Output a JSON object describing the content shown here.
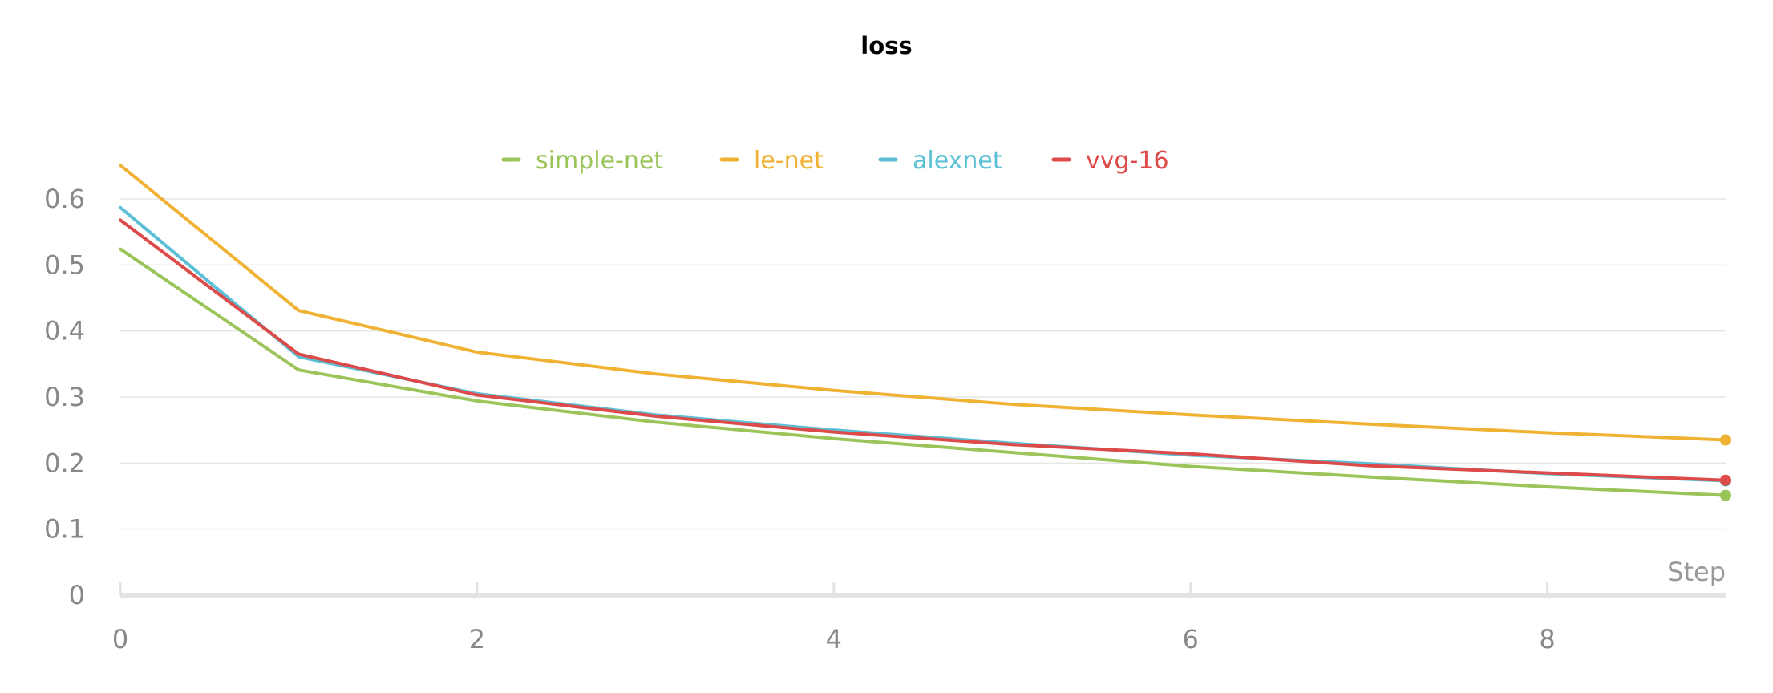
{
  "chart_data": {
    "type": "line",
    "title": "loss",
    "xlabel": "Step",
    "ylabel": "",
    "xlim": [
      0,
      9
    ],
    "ylim": [
      0,
      0.65
    ],
    "xticks": [
      0,
      2,
      4,
      6,
      8
    ],
    "yticks": [
      0,
      0.1,
      0.2,
      0.3,
      0.4,
      0.5,
      0.6
    ],
    "ytick_labels": [
      "0",
      "0.1",
      "0.2",
      "0.3",
      "0.4",
      "0.5",
      "0.6"
    ],
    "grid": true,
    "legend_position": "top-center",
    "x": [
      0,
      1,
      2,
      3,
      4,
      5,
      6,
      7,
      8,
      9
    ],
    "series": [
      {
        "name": "simple-net",
        "color": "#9bc55a",
        "values": [
          0.524,
          0.341,
          0.294,
          0.262,
          0.237,
          0.216,
          0.195,
          0.179,
          0.164,
          0.151
        ]
      },
      {
        "name": "le-net",
        "color": "#f0b233",
        "values": [
          0.651,
          0.431,
          0.368,
          0.335,
          0.31,
          0.289,
          0.273,
          0.259,
          0.246,
          0.235
        ]
      },
      {
        "name": "alexnet",
        "color": "#5bc0d6",
        "values": [
          0.587,
          0.361,
          0.305,
          0.273,
          0.25,
          0.23,
          0.212,
          0.199,
          0.184,
          0.173
        ]
      },
      {
        "name": "vvg-16",
        "color": "#dc4a4a",
        "values": [
          0.568,
          0.365,
          0.303,
          0.271,
          0.247,
          0.228,
          0.214,
          0.196,
          0.185,
          0.174
        ]
      }
    ]
  }
}
